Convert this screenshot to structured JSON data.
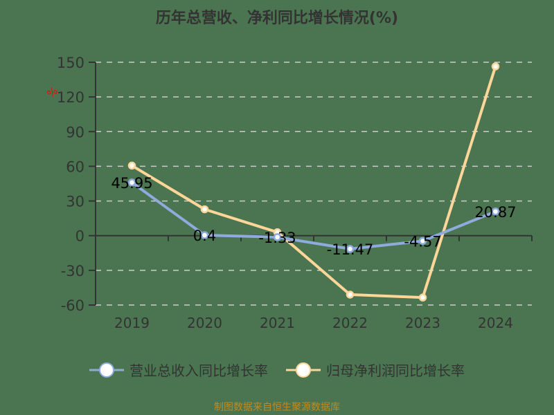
{
  "title": "历年总营收、净利同比增长情况(%)",
  "y_unit_mark": "%",
  "footer": "制图数据来自恒生聚源数据库",
  "colors": {
    "revenue": "#8faadc",
    "profit": "#ffd699",
    "axis": "#333333",
    "grid": "#cccccc",
    "footer": "#c28a1e"
  },
  "chart_data": {
    "type": "line",
    "title": "历年总营收、净利同比增长情况(%)",
    "xlabel": "",
    "ylabel": "%",
    "categories": [
      "2019",
      "2020",
      "2021",
      "2022",
      "2023",
      "2024"
    ],
    "yticks": [
      150,
      120,
      90,
      60,
      30,
      0,
      -30,
      -60
    ],
    "ylim": [
      -60,
      150
    ],
    "grid": true,
    "legend_position": "bottom",
    "series": [
      {
        "name": "营业总收入同比增长率",
        "values": [
          45.95,
          0.4,
          -1.33,
          -11.47,
          -4.57,
          20.87
        ],
        "labels": [
          "45.95",
          "0.4",
          "-1.33",
          "-11.47",
          "-4.57",
          "20.87"
        ],
        "color": "#8faadc"
      },
      {
        "name": "归母净利润同比增长率",
        "values": [
          60.6,
          22.8,
          3.0,
          -51.0,
          -53.5,
          146.4
        ],
        "color": "#ffd699"
      }
    ]
  }
}
